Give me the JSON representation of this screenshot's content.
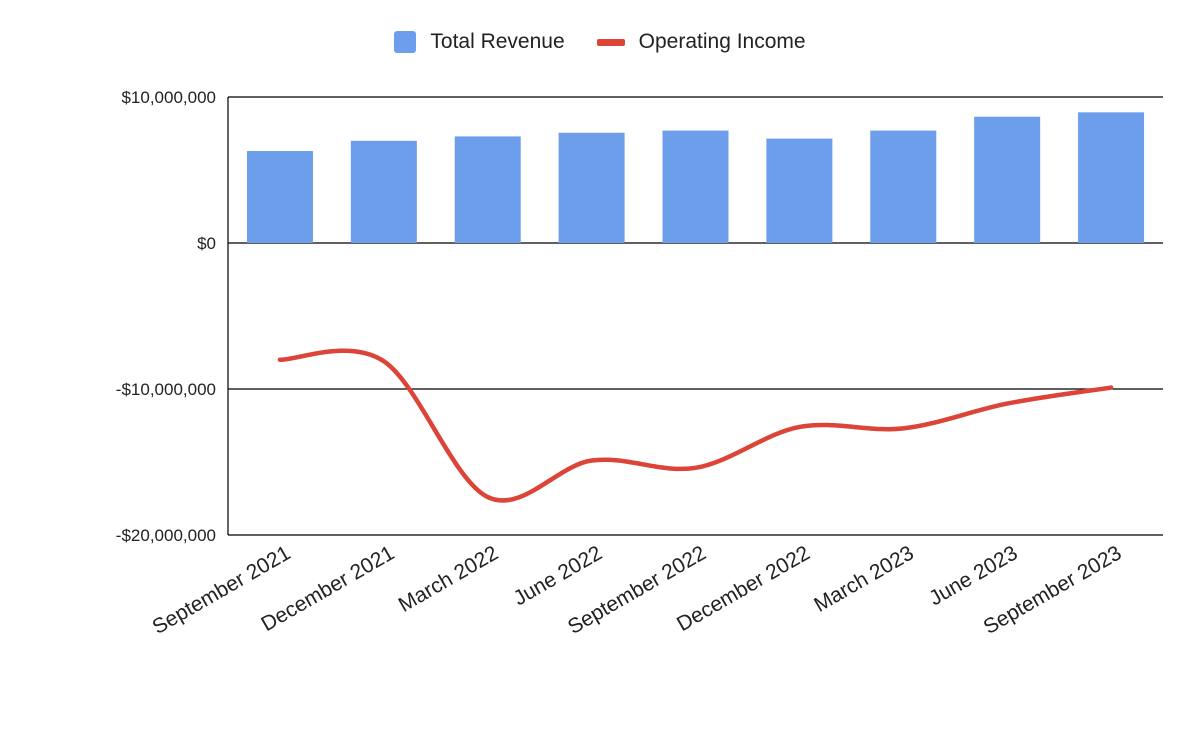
{
  "colors": {
    "revenue": "#6d9eeb",
    "operating_income": "#db4437",
    "axis": "#000000",
    "text": "#222222"
  },
  "legend": {
    "revenue_label": "Total Revenue",
    "operating_income_label": "Operating Income"
  },
  "chart_data": {
    "type": "bar+line",
    "title": "",
    "xlabel": "",
    "ylabel": "",
    "categories": [
      "September 2021",
      "December 2021",
      "March 2022",
      "June 2022",
      "September 2022",
      "December 2022",
      "March 2023",
      "June 2023",
      "September 2023"
    ],
    "series": [
      {
        "name": "Total Revenue",
        "type": "bar",
        "values": [
          6300000,
          7000000,
          7300000,
          7550000,
          7700000,
          7150000,
          7700000,
          8650000,
          8950000
        ]
      },
      {
        "name": "Operating Income",
        "type": "line",
        "smooth": true,
        "values": [
          -8000000,
          -8100000,
          -17400000,
          -14900000,
          -15400000,
          -12600000,
          -12700000,
          -11000000,
          -9900000
        ]
      }
    ],
    "ylim": [
      -20000000,
      10000000
    ],
    "yticks": [
      {
        "value": 10000000,
        "label": "$10,000,000"
      },
      {
        "value": 0,
        "label": "$0"
      },
      {
        "value": -10000000,
        "label": "-$10,000,000"
      },
      {
        "value": -20000000,
        "label": "-$20,000,000"
      }
    ],
    "grid": true,
    "legend_position": "top"
  }
}
